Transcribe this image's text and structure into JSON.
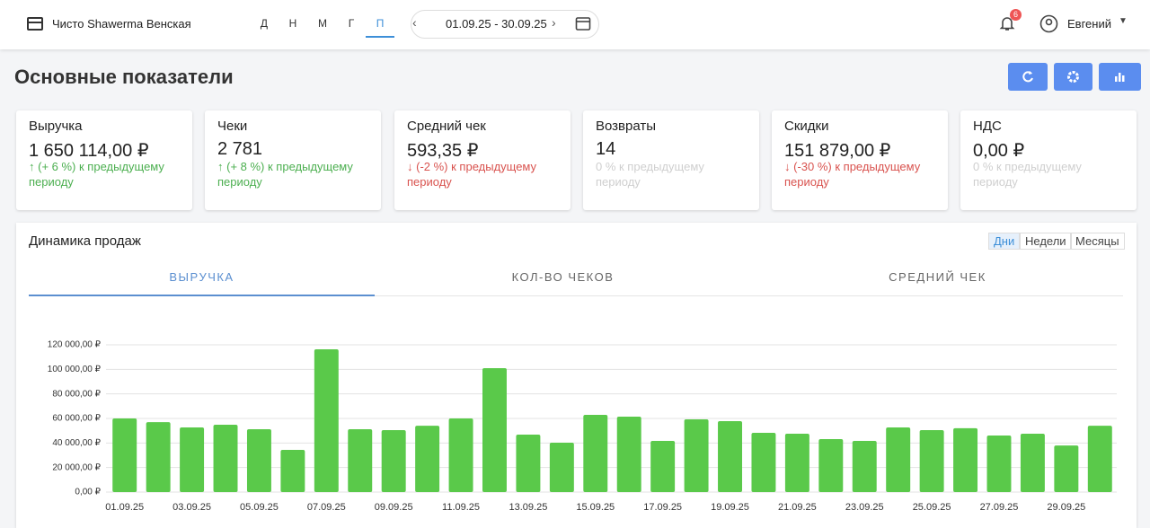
{
  "header": {
    "store": "Чисто Shawerma Венская",
    "period_tabs": [
      "Д",
      "Н",
      "М",
      "Г",
      "П"
    ],
    "date_range": "01.09.25 - 30.09.25",
    "notifications": 6,
    "user": "Евгений"
  },
  "page_title": "Основные показатели",
  "cards": [
    {
      "title": "Выручка",
      "value": "1 650 114,00 ₽",
      "change": "(+ 6 %) к предыдущему периоду"
    },
    {
      "title": "Чеки",
      "value": "2 781",
      "change": "(+ 8 %) к предыдущему периоду"
    },
    {
      "title": "Средний чек",
      "value": "593,35 ₽",
      "change": "(-2 %) к предыдущему периоду"
    },
    {
      "title": "Возвраты",
      "value": "14",
      "change": "0 % к предыдущему периоду"
    },
    {
      "title": "Скидки",
      "value": "151 879,00 ₽",
      "change": "(-30 %) к предыдущему периоду"
    },
    {
      "title": "НДС",
      "value": "0,00 ₽",
      "change": "0 % к предыдущему периоду"
    }
  ],
  "section": {
    "title": "Динамика продаж",
    "granularity": [
      "Дни",
      "Недели",
      "Месяцы"
    ],
    "tabs": [
      "ВЫРУЧКА",
      "КОЛ-ВО ЧЕКОВ",
      "СРЕДНИЙ ЧЕК"
    ]
  },
  "chart_data": {
    "type": "bar",
    "color": "#5ac94a",
    "grid": true,
    "categories": [
      "01.09.25",
      null,
      "03.09.25",
      null,
      "05.09.25",
      null,
      "07.09.25",
      null,
      "09.09.25",
      null,
      "11.09.25",
      null,
      "13.09.25",
      null,
      "15.09.25",
      null,
      "17.09.25",
      null,
      "19.09.25",
      null,
      "21.09.25",
      null,
      "23.09.25",
      null,
      "25.09.25",
      null,
      "27.09.25",
      null,
      "29.09.25",
      null
    ],
    "values": [
      60000,
      57000,
      52700,
      54900,
      51200,
      34400,
      116300,
      51200,
      50500,
      54100,
      60000,
      101000,
      46800,
      40200,
      62900,
      61500,
      41700,
      59300,
      57800,
      48300,
      47600,
      43200,
      41700,
      52700,
      50500,
      52000,
      46100,
      47600,
      38000,
      54100
    ],
    "ylim": [
      0,
      120000
    ],
    "yticks": [
      {
        "value": 0,
        "label": "0,00 ₽"
      },
      {
        "value": 20000,
        "label": "20 000,00 ₽"
      },
      {
        "value": 40000,
        "label": "40 000,00 ₽"
      },
      {
        "value": 60000,
        "label": "60 000,00 ₽"
      },
      {
        "value": 80000,
        "label": "80 000,00 ₽"
      },
      {
        "value": 100000,
        "label": "100 000,00 ₽"
      },
      {
        "value": 120000,
        "label": "120 000,00 ₽"
      }
    ]
  }
}
